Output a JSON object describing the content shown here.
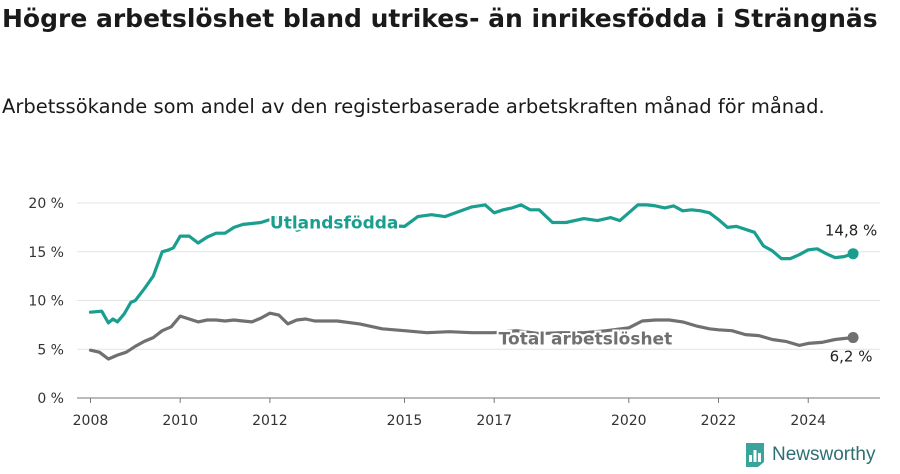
{
  "title": "Högre arbetslöshet bland utrikes- än inrikesfödda i Strängnäs",
  "subtitle": "Arbetssökande som andel av den registerbaserade arbetskraften månad för månad.",
  "brand": {
    "name": "Newsworthy",
    "icon": "newsworthy-logo-icon"
  },
  "colors": {
    "utrikes": "#1a9e8f",
    "total": "#707070",
    "grid": "#e3e3e3"
  },
  "chart_data": {
    "type": "line",
    "x_ticks": [
      "2008",
      "2010",
      "2012",
      "2015",
      "2017",
      "2020",
      "2022",
      "2024"
    ],
    "y_ticks": [
      "0 %",
      "5 %",
      "10 %",
      "15 %",
      "20 %"
    ],
    "ylim": [
      0,
      20
    ],
    "xlim": [
      2007.7,
      2025.6
    ],
    "grid": true,
    "series": [
      {
        "name": "Utlandsfödda",
        "color": "#1a9e8f",
        "end_label": "14,8 %",
        "x": [
          2008.0,
          2008.25,
          2008.4,
          2008.5,
          2008.6,
          2008.75,
          2008.9,
          2009.0,
          2009.2,
          2009.4,
          2009.6,
          2009.75,
          2009.85,
          2010.0,
          2010.2,
          2010.4,
          2010.6,
          2010.8,
          2011.0,
          2011.2,
          2011.4,
          2011.6,
          2011.8,
          2012.0,
          2012.2,
          2012.4,
          2012.6,
          2012.8,
          2013.0,
          2013.2,
          2013.5,
          2014.0,
          2014.5,
          2015.0,
          2015.3,
          2015.6,
          2015.9,
          2016.2,
          2016.5,
          2016.8,
          2017.0,
          2017.2,
          2017.4,
          2017.6,
          2017.8,
          2018.0,
          2018.3,
          2018.6,
          2019.0,
          2019.3,
          2019.6,
          2019.8,
          2020.0,
          2020.2,
          2020.4,
          2020.6,
          2020.8,
          2021.0,
          2021.2,
          2021.4,
          2021.6,
          2021.8,
          2022.0,
          2022.2,
          2022.4,
          2022.6,
          2022.8,
          2023.0,
          2023.2,
          2023.4,
          2023.6,
          2023.8,
          2024.0,
          2024.2,
          2024.4,
          2024.6,
          2024.8,
          2025.0
        ],
        "values": [
          8.8,
          8.9,
          7.7,
          8.1,
          7.8,
          8.6,
          9.8,
          10.0,
          11.2,
          12.5,
          15.0,
          15.2,
          15.4,
          16.6,
          16.6,
          15.9,
          16.5,
          16.9,
          16.9,
          17.5,
          17.8,
          17.9,
          18.0,
          18.3,
          18.6,
          18.6,
          17.2,
          17.5,
          17.6,
          17.8,
          18.1,
          17.8,
          17.7,
          17.6,
          18.6,
          18.8,
          18.6,
          19.1,
          19.6,
          19.8,
          19.0,
          19.3,
          19.5,
          19.8,
          19.3,
          19.3,
          18.0,
          18.0,
          18.4,
          18.2,
          18.5,
          18.2,
          19.0,
          19.8,
          19.8,
          19.7,
          19.5,
          19.7,
          19.2,
          19.3,
          19.2,
          19.0,
          18.3,
          17.5,
          17.6,
          17.3,
          17.0,
          15.6,
          15.1,
          14.3,
          14.3,
          14.7,
          15.2,
          15.3,
          14.8,
          14.4,
          14.5,
          14.8
        ]
      },
      {
        "name": "Total arbetslöshet",
        "color": "#707070",
        "end_label": "6,2 %",
        "x": [
          2008.0,
          2008.2,
          2008.4,
          2008.6,
          2008.8,
          2009.0,
          2009.2,
          2009.4,
          2009.6,
          2009.8,
          2010.0,
          2010.2,
          2010.4,
          2010.6,
          2010.8,
          2011.0,
          2011.2,
          2011.4,
          2011.6,
          2011.8,
          2012.0,
          2012.2,
          2012.4,
          2012.6,
          2012.8,
          2013.0,
          2013.5,
          2014.0,
          2014.5,
          2015.0,
          2015.5,
          2016.0,
          2016.5,
          2017.0,
          2017.5,
          2018.0,
          2018.5,
          2019.0,
          2019.5,
          2020.0,
          2020.3,
          2020.6,
          2020.9,
          2021.2,
          2021.5,
          2021.8,
          2022.0,
          2022.3,
          2022.6,
          2022.9,
          2023.2,
          2023.5,
          2023.8,
          2024.0,
          2024.3,
          2024.6,
          2024.8,
          2025.0
        ],
        "values": [
          4.9,
          4.7,
          4.0,
          4.4,
          4.7,
          5.3,
          5.8,
          6.2,
          6.9,
          7.3,
          8.4,
          8.1,
          7.8,
          8.0,
          8.0,
          7.9,
          8.0,
          7.9,
          7.8,
          8.2,
          8.7,
          8.5,
          7.6,
          8.0,
          8.1,
          7.9,
          7.9,
          7.6,
          7.1,
          6.9,
          6.7,
          6.8,
          6.7,
          6.7,
          6.9,
          6.6,
          6.7,
          6.7,
          6.9,
          7.2,
          7.9,
          8.0,
          8.0,
          7.8,
          7.4,
          7.1,
          7.0,
          6.9,
          6.5,
          6.4,
          6.0,
          5.8,
          5.4,
          5.6,
          5.7,
          6.0,
          6.1,
          6.2
        ]
      }
    ]
  }
}
